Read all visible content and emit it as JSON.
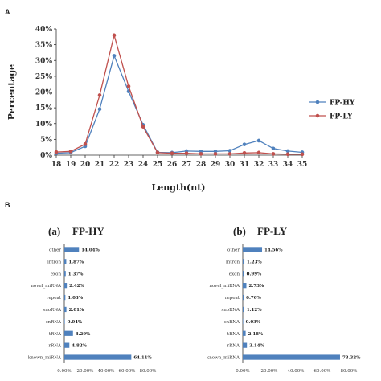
{
  "panels": {
    "A": "A",
    "B": "B"
  },
  "chart_data": [
    {
      "type": "line",
      "x": [
        18,
        19,
        20,
        21,
        22,
        23,
        24,
        25,
        26,
        27,
        28,
        29,
        30,
        31,
        32,
        33,
        34,
        35
      ],
      "xlabel": "Length(nt)",
      "ylabel": "Percentage",
      "ylim": [
        0,
        40
      ],
      "yticks": [
        "0%",
        "5%",
        "10%",
        "15%",
        "20%",
        "25%",
        "30%",
        "35%",
        "40%"
      ],
      "grid": false,
      "legend_position": "right",
      "series": [
        {
          "name": "FP-HY",
          "color": "#4f81bd",
          "values": [
            0.6,
            0.8,
            2.8,
            14.6,
            31.5,
            20.2,
            9.6,
            0.9,
            0.8,
            1.3,
            1.2,
            1.2,
            1.4,
            3.4,
            4.6,
            2.1,
            1.3,
            0.9
          ]
        },
        {
          "name": "FP-LY",
          "color": "#c0504d",
          "values": [
            1.0,
            1.2,
            3.5,
            19.0,
            38.0,
            21.8,
            9.0,
            0.8,
            0.6,
            0.6,
            0.4,
            0.4,
            0.4,
            0.7,
            0.8,
            0.4,
            0.3,
            0.3
          ]
        }
      ]
    },
    {
      "type": "bar",
      "panel_label": "(a)",
      "title": "FP-HY",
      "orientation": "horizontal",
      "categories": [
        "other",
        "intron",
        "exon",
        "novel_miRNA",
        "repeat",
        "snoRNA",
        "snRNA",
        "tRNA",
        "rRNA",
        "known_miRNA"
      ],
      "values": [
        14.04,
        1.87,
        1.37,
        2.42,
        1.03,
        2.01,
        0.04,
        8.29,
        4.82,
        64.11
      ],
      "value_labels": [
        "14.04%",
        "1.87%",
        "1.37%",
        "2.42%",
        "1.03%",
        "2.01%",
        "0.04%",
        "8.29%",
        "4.82%",
        "64.11%"
      ],
      "xlim": [
        0,
        80
      ],
      "xticks": [
        "0.00%",
        "20.00%",
        "40.00%",
        "60.00%",
        "80.00%"
      ],
      "color": "#4f81bd"
    },
    {
      "type": "bar",
      "panel_label": "(b)",
      "title": "FP-LY",
      "orientation": "horizontal",
      "categories": [
        "other",
        "intron",
        "exon",
        "novel_miRNA",
        "repeat",
        "snoRNA",
        "snRNA",
        "tRNA",
        "rRNA",
        "known_miRNA"
      ],
      "values": [
        14.56,
        1.23,
        0.99,
        2.73,
        0.7,
        1.12,
        0.03,
        2.18,
        3.14,
        73.32
      ],
      "value_labels": [
        "14.56%",
        "1.23%",
        "0.99%",
        "2.73%",
        "0.70%",
        "1.12%",
        "0.03%",
        "2.18%",
        "3.14%",
        "73.32%"
      ],
      "xlim": [
        0,
        80
      ],
      "xticks": [
        "0.00%",
        "20.00%",
        "40.00%",
        "60.00%",
        "80.00%"
      ],
      "color": "#4f81bd"
    }
  ]
}
